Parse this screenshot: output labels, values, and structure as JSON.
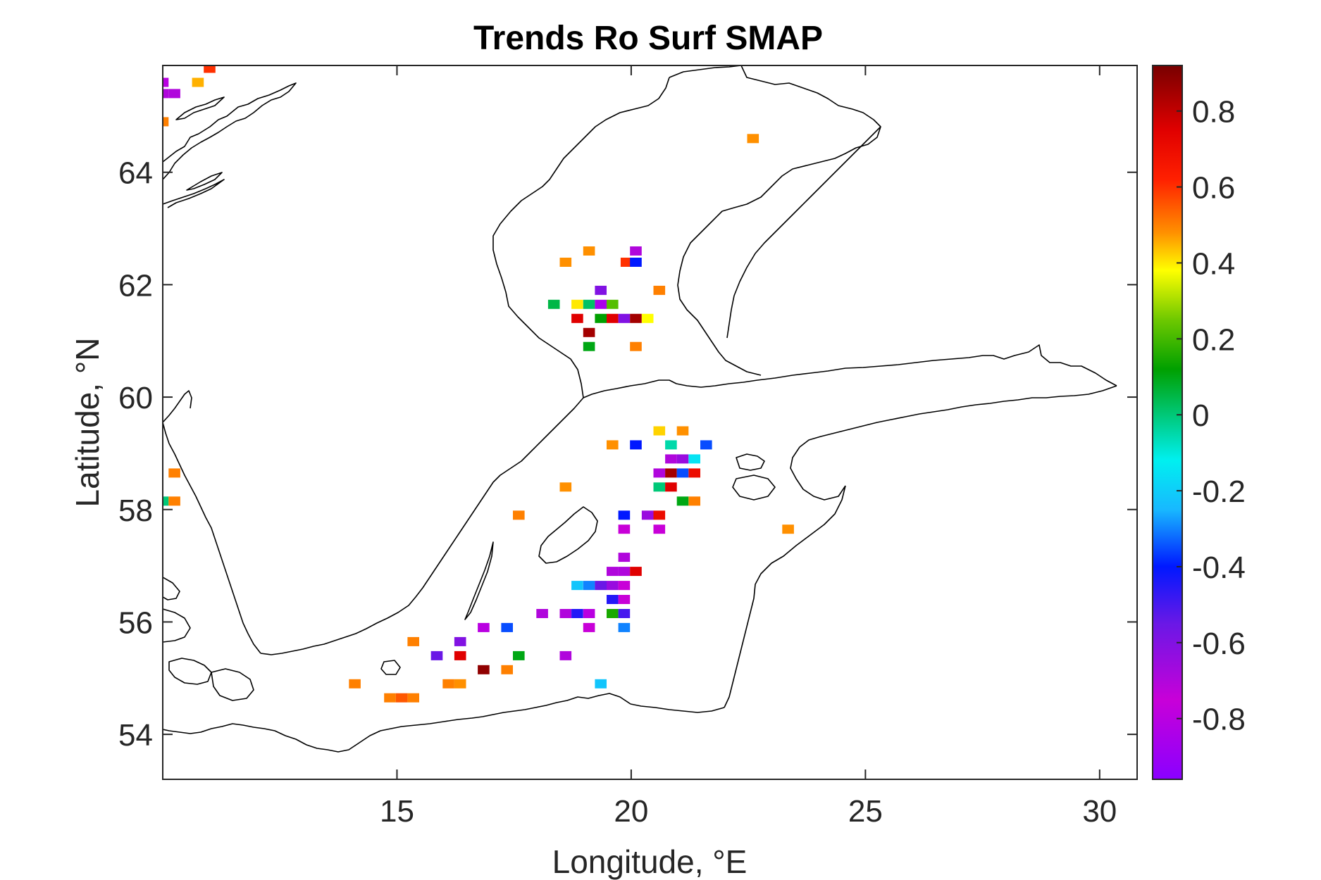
{
  "chart_data": {
    "type": "heatmap",
    "title": "Trends Ro Surf SMAP",
    "xlabel": "Longitude, °E",
    "ylabel": "Latitude, °N",
    "xlim": [
      10.0,
      30.8
    ],
    "ylim": [
      53.2,
      65.9
    ],
    "xticks": [
      15,
      20,
      25,
      30
    ],
    "yticks": [
      54,
      56,
      58,
      60,
      62,
      64
    ],
    "colorbar": {
      "range": [
        -0.96,
        0.92
      ],
      "ticks": [
        0.8,
        0.6,
        0.4,
        0.2,
        0,
        -0.2,
        -0.4,
        -0.6,
        -0.8
      ],
      "tick_labels": [
        "0.8",
        "0.6",
        "0.4",
        "0.2",
        "0",
        "-0.2",
        "-0.4",
        "-0.6",
        "-0.8"
      ],
      "stops": [
        {
          "v": -0.96,
          "c": "#8a00ff"
        },
        {
          "v": -0.75,
          "c": "#c800d8"
        },
        {
          "v": -0.55,
          "c": "#6a18e6"
        },
        {
          "v": -0.4,
          "c": "#0018ff"
        },
        {
          "v": -0.25,
          "c": "#18b8ff"
        },
        {
          "v": -0.12,
          "c": "#00f0f0"
        },
        {
          "v": 0.0,
          "c": "#00c878"
        },
        {
          "v": 0.12,
          "c": "#00a000"
        },
        {
          "v": 0.25,
          "c": "#6ec800"
        },
        {
          "v": 0.38,
          "c": "#ffff00"
        },
        {
          "v": 0.48,
          "c": "#ff9000"
        },
        {
          "v": 0.62,
          "c": "#ff2000"
        },
        {
          "v": 0.75,
          "c": "#e00000"
        },
        {
          "v": 0.92,
          "c": "#780000"
        }
      ]
    },
    "grid": false,
    "cell_size_deg": 0.25,
    "points": [
      {
        "lon": 10.0,
        "lat": 65.6,
        "v": -0.8
      },
      {
        "lon": 10.0,
        "lat": 65.4,
        "v": -0.7
      },
      {
        "lon": 10.25,
        "lat": 65.4,
        "v": -0.7
      },
      {
        "lon": 10.75,
        "lat": 65.6,
        "v": 0.45
      },
      {
        "lon": 11.0,
        "lat": 65.85,
        "v": 0.6
      },
      {
        "lon": 10.0,
        "lat": 64.9,
        "v": 0.5
      },
      {
        "lon": 22.6,
        "lat": 64.6,
        "v": 0.48
      },
      {
        "lon": 18.6,
        "lat": 62.4,
        "v": 0.48
      },
      {
        "lon": 19.1,
        "lat": 62.6,
        "v": 0.48
      },
      {
        "lon": 20.1,
        "lat": 62.6,
        "v": -0.7
      },
      {
        "lon": 19.9,
        "lat": 62.4,
        "v": 0.6
      },
      {
        "lon": 20.1,
        "lat": 62.4,
        "v": -0.4
      },
      {
        "lon": 20.6,
        "lat": 61.9,
        "v": 0.5
      },
      {
        "lon": 19.35,
        "lat": 61.9,
        "v": -0.6
      },
      {
        "lon": 18.35,
        "lat": 61.65,
        "v": 0.05
      },
      {
        "lon": 18.85,
        "lat": 61.65,
        "v": 0.4
      },
      {
        "lon": 19.1,
        "lat": 61.65,
        "v": 0.02
      },
      {
        "lon": 19.35,
        "lat": 61.65,
        "v": -0.85
      },
      {
        "lon": 19.6,
        "lat": 61.65,
        "v": 0.22
      },
      {
        "lon": 18.85,
        "lat": 61.4,
        "v": 0.75
      },
      {
        "lon": 19.35,
        "lat": 61.4,
        "v": 0.12
      },
      {
        "lon": 19.6,
        "lat": 61.4,
        "v": 0.75
      },
      {
        "lon": 19.85,
        "lat": 61.4,
        "v": -0.6
      },
      {
        "lon": 20.1,
        "lat": 61.4,
        "v": 0.85
      },
      {
        "lon": 20.35,
        "lat": 61.4,
        "v": 0.38
      },
      {
        "lon": 19.1,
        "lat": 61.15,
        "v": 0.85
      },
      {
        "lon": 19.1,
        "lat": 60.9,
        "v": 0.1
      },
      {
        "lon": 20.1,
        "lat": 60.9,
        "v": 0.5
      },
      {
        "lon": 20.6,
        "lat": 59.4,
        "v": 0.42
      },
      {
        "lon": 21.1,
        "lat": 59.4,
        "v": 0.48
      },
      {
        "lon": 19.6,
        "lat": 59.15,
        "v": 0.48
      },
      {
        "lon": 20.1,
        "lat": 59.15,
        "v": -0.4
      },
      {
        "lon": 20.85,
        "lat": 59.15,
        "v": -0.05
      },
      {
        "lon": 21.6,
        "lat": 59.15,
        "v": -0.35
      },
      {
        "lon": 20.85,
        "lat": 58.9,
        "v": -0.7
      },
      {
        "lon": 21.1,
        "lat": 58.9,
        "v": -0.65
      },
      {
        "lon": 21.35,
        "lat": 58.9,
        "v": -0.15
      },
      {
        "lon": 20.6,
        "lat": 58.65,
        "v": -0.7
      },
      {
        "lon": 20.85,
        "lat": 58.65,
        "v": 0.85
      },
      {
        "lon": 21.1,
        "lat": 58.65,
        "v": -0.35
      },
      {
        "lon": 21.35,
        "lat": 58.65,
        "v": 0.7
      },
      {
        "lon": 20.6,
        "lat": 58.4,
        "v": 0.0
      },
      {
        "lon": 20.85,
        "lat": 58.4,
        "v": 0.75
      },
      {
        "lon": 21.1,
        "lat": 58.15,
        "v": 0.1
      },
      {
        "lon": 21.35,
        "lat": 58.15,
        "v": 0.5
      },
      {
        "lon": 18.6,
        "lat": 58.4,
        "v": 0.48
      },
      {
        "lon": 17.6,
        "lat": 57.9,
        "v": 0.5
      },
      {
        "lon": 19.85,
        "lat": 57.9,
        "v": -0.4
      },
      {
        "lon": 20.35,
        "lat": 57.9,
        "v": -0.65
      },
      {
        "lon": 20.6,
        "lat": 57.9,
        "v": 0.7
      },
      {
        "lon": 19.85,
        "lat": 57.65,
        "v": -0.75
      },
      {
        "lon": 20.6,
        "lat": 57.65,
        "v": -0.75
      },
      {
        "lon": 23.35,
        "lat": 57.65,
        "v": 0.48
      },
      {
        "lon": 19.85,
        "lat": 57.15,
        "v": -0.7
      },
      {
        "lon": 19.6,
        "lat": 56.9,
        "v": -0.7
      },
      {
        "lon": 19.85,
        "lat": 56.9,
        "v": -0.7
      },
      {
        "lon": 20.1,
        "lat": 56.9,
        "v": 0.75
      },
      {
        "lon": 18.85,
        "lat": 56.65,
        "v": -0.22
      },
      {
        "lon": 19.1,
        "lat": 56.65,
        "v": -0.3
      },
      {
        "lon": 19.35,
        "lat": 56.65,
        "v": -0.55
      },
      {
        "lon": 19.6,
        "lat": 56.65,
        "v": -0.65
      },
      {
        "lon": 19.85,
        "lat": 56.65,
        "v": -0.75
      },
      {
        "lon": 19.6,
        "lat": 56.4,
        "v": -0.45
      },
      {
        "lon": 19.85,
        "lat": 56.4,
        "v": -0.75
      },
      {
        "lon": 18.1,
        "lat": 56.15,
        "v": -0.7
      },
      {
        "lon": 18.6,
        "lat": 56.15,
        "v": -0.7
      },
      {
        "lon": 18.85,
        "lat": 56.15,
        "v": -0.45
      },
      {
        "lon": 19.1,
        "lat": 56.15,
        "v": -0.8
      },
      {
        "lon": 19.6,
        "lat": 56.15,
        "v": 0.15
      },
      {
        "lon": 19.85,
        "lat": 56.15,
        "v": -0.5
      },
      {
        "lon": 19.1,
        "lat": 55.9,
        "v": -0.75
      },
      {
        "lon": 19.85,
        "lat": 55.9,
        "v": -0.3
      },
      {
        "lon": 16.85,
        "lat": 55.9,
        "v": -0.8
      },
      {
        "lon": 17.35,
        "lat": 55.9,
        "v": -0.35
      },
      {
        "lon": 15.35,
        "lat": 55.65,
        "v": 0.5
      },
      {
        "lon": 16.35,
        "lat": 55.65,
        "v": -0.6
      },
      {
        "lon": 15.85,
        "lat": 55.4,
        "v": -0.55
      },
      {
        "lon": 16.35,
        "lat": 55.4,
        "v": 0.75
      },
      {
        "lon": 17.6,
        "lat": 55.4,
        "v": 0.1
      },
      {
        "lon": 18.6,
        "lat": 55.4,
        "v": -0.7
      },
      {
        "lon": 16.85,
        "lat": 55.15,
        "v": 0.88
      },
      {
        "lon": 17.35,
        "lat": 55.15,
        "v": 0.5
      },
      {
        "lon": 14.1,
        "lat": 54.9,
        "v": 0.5
      },
      {
        "lon": 16.1,
        "lat": 54.9,
        "v": 0.5
      },
      {
        "lon": 16.35,
        "lat": 54.9,
        "v": 0.48
      },
      {
        "lon": 19.35,
        "lat": 54.9,
        "v": -0.22
      },
      {
        "lon": 14.85,
        "lat": 54.65,
        "v": 0.5
      },
      {
        "lon": 15.1,
        "lat": 54.65,
        "v": 0.55
      },
      {
        "lon": 15.35,
        "lat": 54.65,
        "v": 0.5
      },
      {
        "lon": 10.25,
        "lat": 58.65,
        "v": 0.5
      },
      {
        "lon": 10.0,
        "lat": 58.15,
        "v": 0.0
      },
      {
        "lon": 10.25,
        "lat": 58.15,
        "v": 0.5
      }
    ]
  }
}
